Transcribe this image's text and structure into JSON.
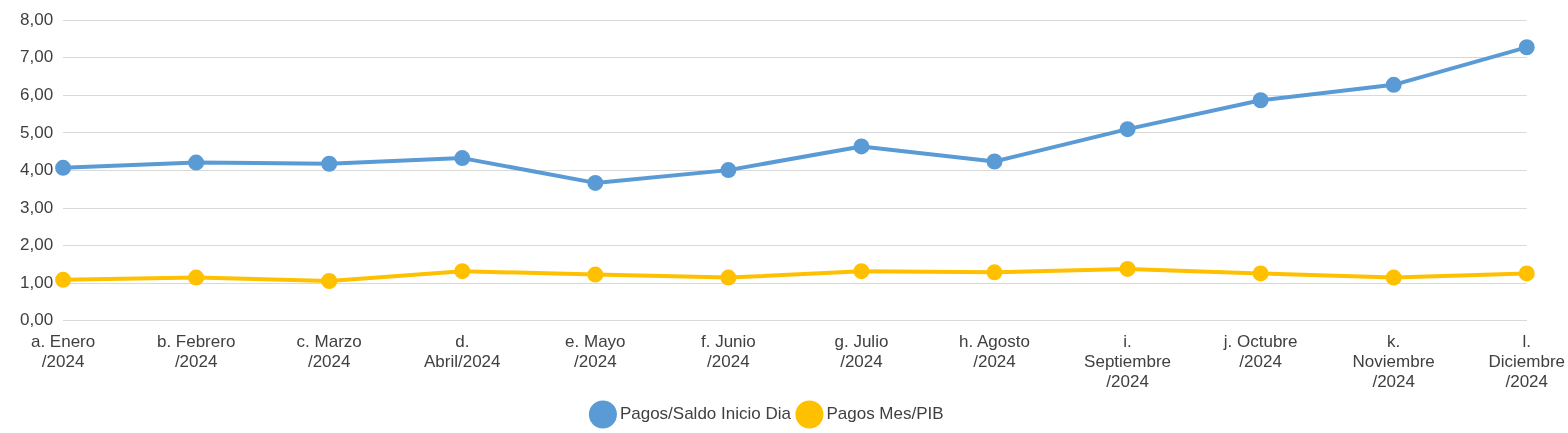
{
  "chart_data": {
    "type": "line",
    "categories": [
      "a. Enero /2024",
      "b. Febrero /2024",
      "c. Marzo /2024",
      "d. Abril/2024",
      "e. Mayo /2024",
      "f. Junio /2024",
      "g. Julio /2024",
      "h. Agosto /2024",
      "i. Septiembre /2024",
      "j. Octubre /2024",
      "k. Noviembre /2024",
      "l. Diciembre /2024"
    ],
    "series": [
      {
        "name": "Pagos/Saldo Inicio Dia",
        "color": "#5b9bd5",
        "values": [
          4.07,
          4.21,
          4.18,
          4.33,
          3.67,
          4.01,
          4.64,
          4.24,
          5.1,
          5.87,
          6.28,
          7.28
        ]
      },
      {
        "name": "Pagos Mes/PIB",
        "color": "#ffc000",
        "values": [
          1.09,
          1.15,
          1.06,
          1.32,
          1.23,
          1.15,
          1.32,
          1.29,
          1.38,
          1.26,
          1.15,
          1.26
        ]
      }
    ],
    "ylim": [
      0,
      8
    ],
    "yticks": [
      {
        "value": 0,
        "label": "0,00"
      },
      {
        "value": 1,
        "label": "1,00"
      },
      {
        "value": 2,
        "label": "2,00"
      },
      {
        "value": 3,
        "label": "3,00"
      },
      {
        "value": 4,
        "label": "4,00"
      },
      {
        "value": 5,
        "label": "5,00"
      },
      {
        "value": 6,
        "label": "6,00"
      },
      {
        "value": 7,
        "label": "7,00"
      },
      {
        "value": 8,
        "label": "8,00"
      }
    ],
    "grid": "y",
    "legend": "bottom",
    "marker": "circle",
    "line_style": "solid"
  }
}
